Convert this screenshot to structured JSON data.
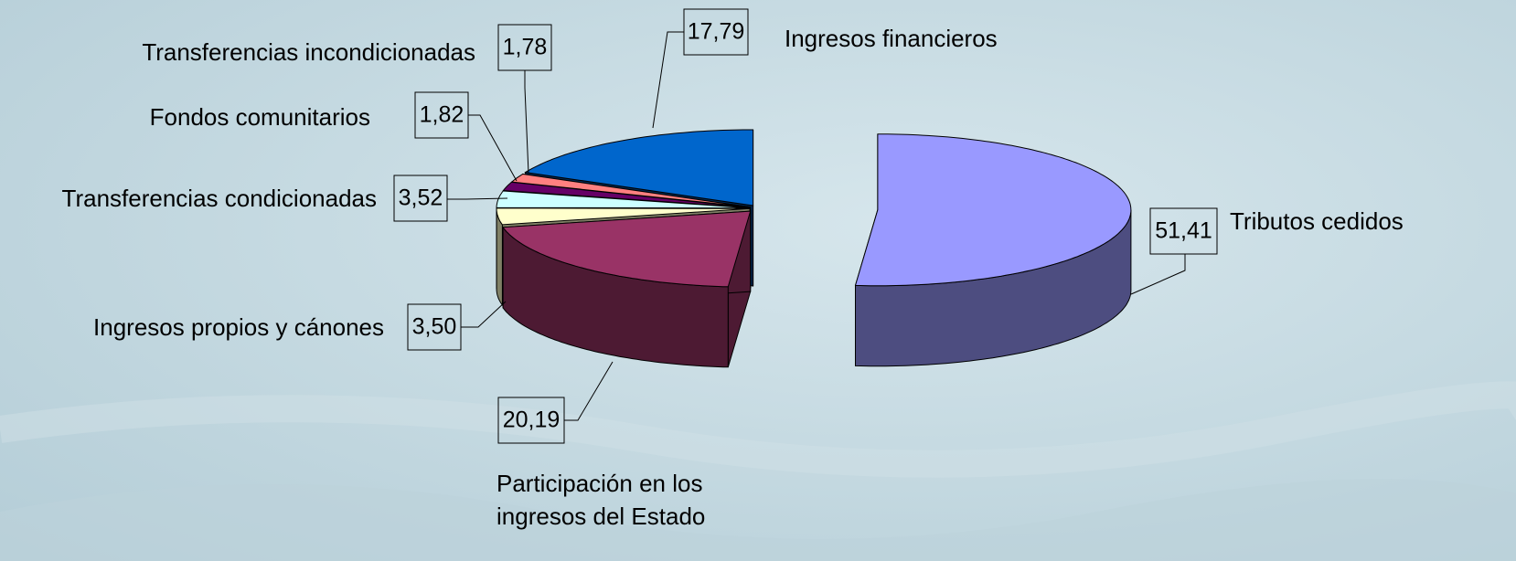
{
  "chart_data": {
    "type": "pie",
    "categories": [
      "Tributos cedidos",
      "Participación en los ingresos del Estado",
      "Ingresos propios y cánones",
      "Transferencias condicionadas",
      "Fondos comunitarios",
      "Transferencias incondicionadas",
      "Ingresos financieros"
    ],
    "values": [
      51.41,
      20.19,
      3.5,
      3.52,
      1.82,
      1.78,
      17.79
    ],
    "value_labels": [
      "51,41",
      "20,19",
      "3,50",
      "3,52",
      "1,82",
      "1,78",
      "17,79"
    ],
    "colors": [
      "#9999ff",
      "#993366",
      "#ffffcc",
      "#ccffff",
      "#660066",
      "#ff8080",
      "#0066cc"
    ]
  }
}
